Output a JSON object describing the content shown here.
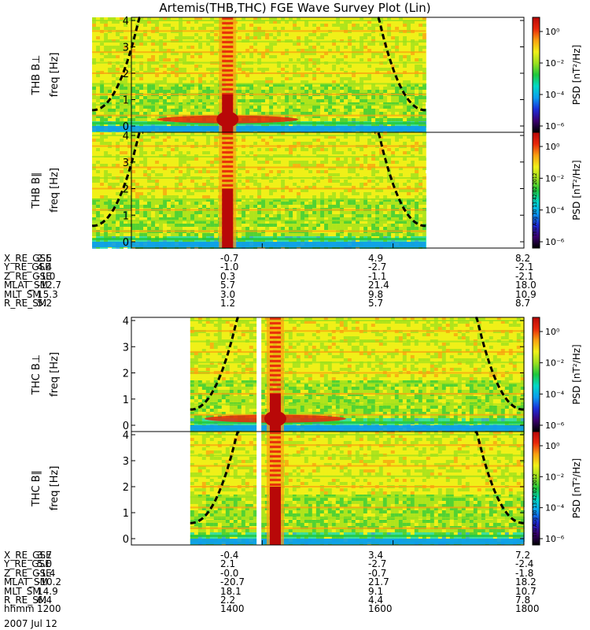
{
  "title": "Artemis(THB,THC) FGE Wave Survey Plot (Lin)",
  "chart_data": {
    "type": "heatmap",
    "panels": [
      {
        "probe": "THB",
        "ylabel": "THB B⊥",
        "ylabel2": "freq [Hz]",
        "cbar_label": "PSD [nT²/Hz]",
        "data_start": 1140,
        "data_end": 1650
      },
      {
        "probe": "THB",
        "ylabel": "THB B∥",
        "ylabel2": "freq [Hz]",
        "cbar_label": "PSD [nT²/Hz]",
        "data_start": 1140,
        "data_end": 1650
      },
      {
        "probe": "THC",
        "ylabel": "THC B⊥",
        "ylabel2": "freq [Hz]",
        "cbar_label": "PSD [nT²/Hz]",
        "data_start": 1290,
        "data_end": 1800
      },
      {
        "probe": "THC",
        "ylabel": "THC B∥",
        "ylabel2": "freq [Hz]",
        "cbar_label": "PSD [nT²/Hz]",
        "data_start": 1290,
        "data_end": 1800
      }
    ],
    "y_ticks": [
      "0",
      "1",
      "2",
      "3",
      "4"
    ],
    "ylim": [
      0,
      4
    ],
    "cbar_ticks": [
      "10⁰",
      "10⁻²",
      "10⁻⁴",
      "10⁻⁶"
    ],
    "xlim": [
      1200,
      1800
    ],
    "colormap": [
      "#000000",
      "#3a0070",
      "#1c2cd8",
      "#0a9cf0",
      "#00d8c8",
      "#1ec83c",
      "#9ae01e",
      "#f0f018",
      "#f8a010",
      "#e8260a",
      "#b80808"
    ]
  },
  "ephemeris_thb": {
    "rows": [
      {
        "label": "X_RE_GSE",
        "values": [
          "2.5",
          "-0.7",
          "4.9",
          "8.2"
        ]
      },
      {
        "label": "Y_RE_GSE",
        "values": [
          "4.4",
          "-1.0",
          "-2.7",
          "-2.1"
        ]
      },
      {
        "label": "Z_RE_GSE",
        "values": [
          "-1.0",
          "0.3",
          "-1.1",
          "-2.1"
        ]
      },
      {
        "label": "MLAT_SM",
        "values": [
          "-12.7",
          "5.7",
          "21.4",
          "18.0"
        ]
      },
      {
        "label": "MLT_SM",
        "values": [
          "15.3",
          "3.0",
          "9.8",
          "10.9"
        ]
      },
      {
        "label": "R_RE_SM",
        "values": [
          "5.2",
          "1.2",
          "5.7",
          "8.7"
        ]
      }
    ]
  },
  "ephemeris_thc": {
    "rows": [
      {
        "label": "X_RE_GSE",
        "values": [
          "3.7",
          "-0.4",
          "3.4",
          "7.2"
        ]
      },
      {
        "label": "Y_RE_GSE",
        "values": [
          "5.0",
          "2.1",
          "-2.7",
          "-2.4"
        ]
      },
      {
        "label": "Z_RE_GSE",
        "values": [
          "-1.4",
          "-0.0",
          "-0.7",
          "-1.8"
        ]
      },
      {
        "label": "MLAT_SM",
        "values": [
          "-10.2",
          "-20.7",
          "21.7",
          "18.2"
        ]
      },
      {
        "label": "MLT_SM",
        "values": [
          "14.9",
          "18.1",
          "9.1",
          "10.7"
        ]
      },
      {
        "label": "R_RE_SM",
        "values": [
          "6.4",
          "2.2",
          "4.4",
          "7.8"
        ]
      },
      {
        "label": "hhmm",
        "values": [
          "1200",
          "1400",
          "1600",
          "1800"
        ]
      }
    ]
  },
  "date_label": "2007 Jul 12",
  "stamp": "Thu Aug 30 13:42:02 2012"
}
